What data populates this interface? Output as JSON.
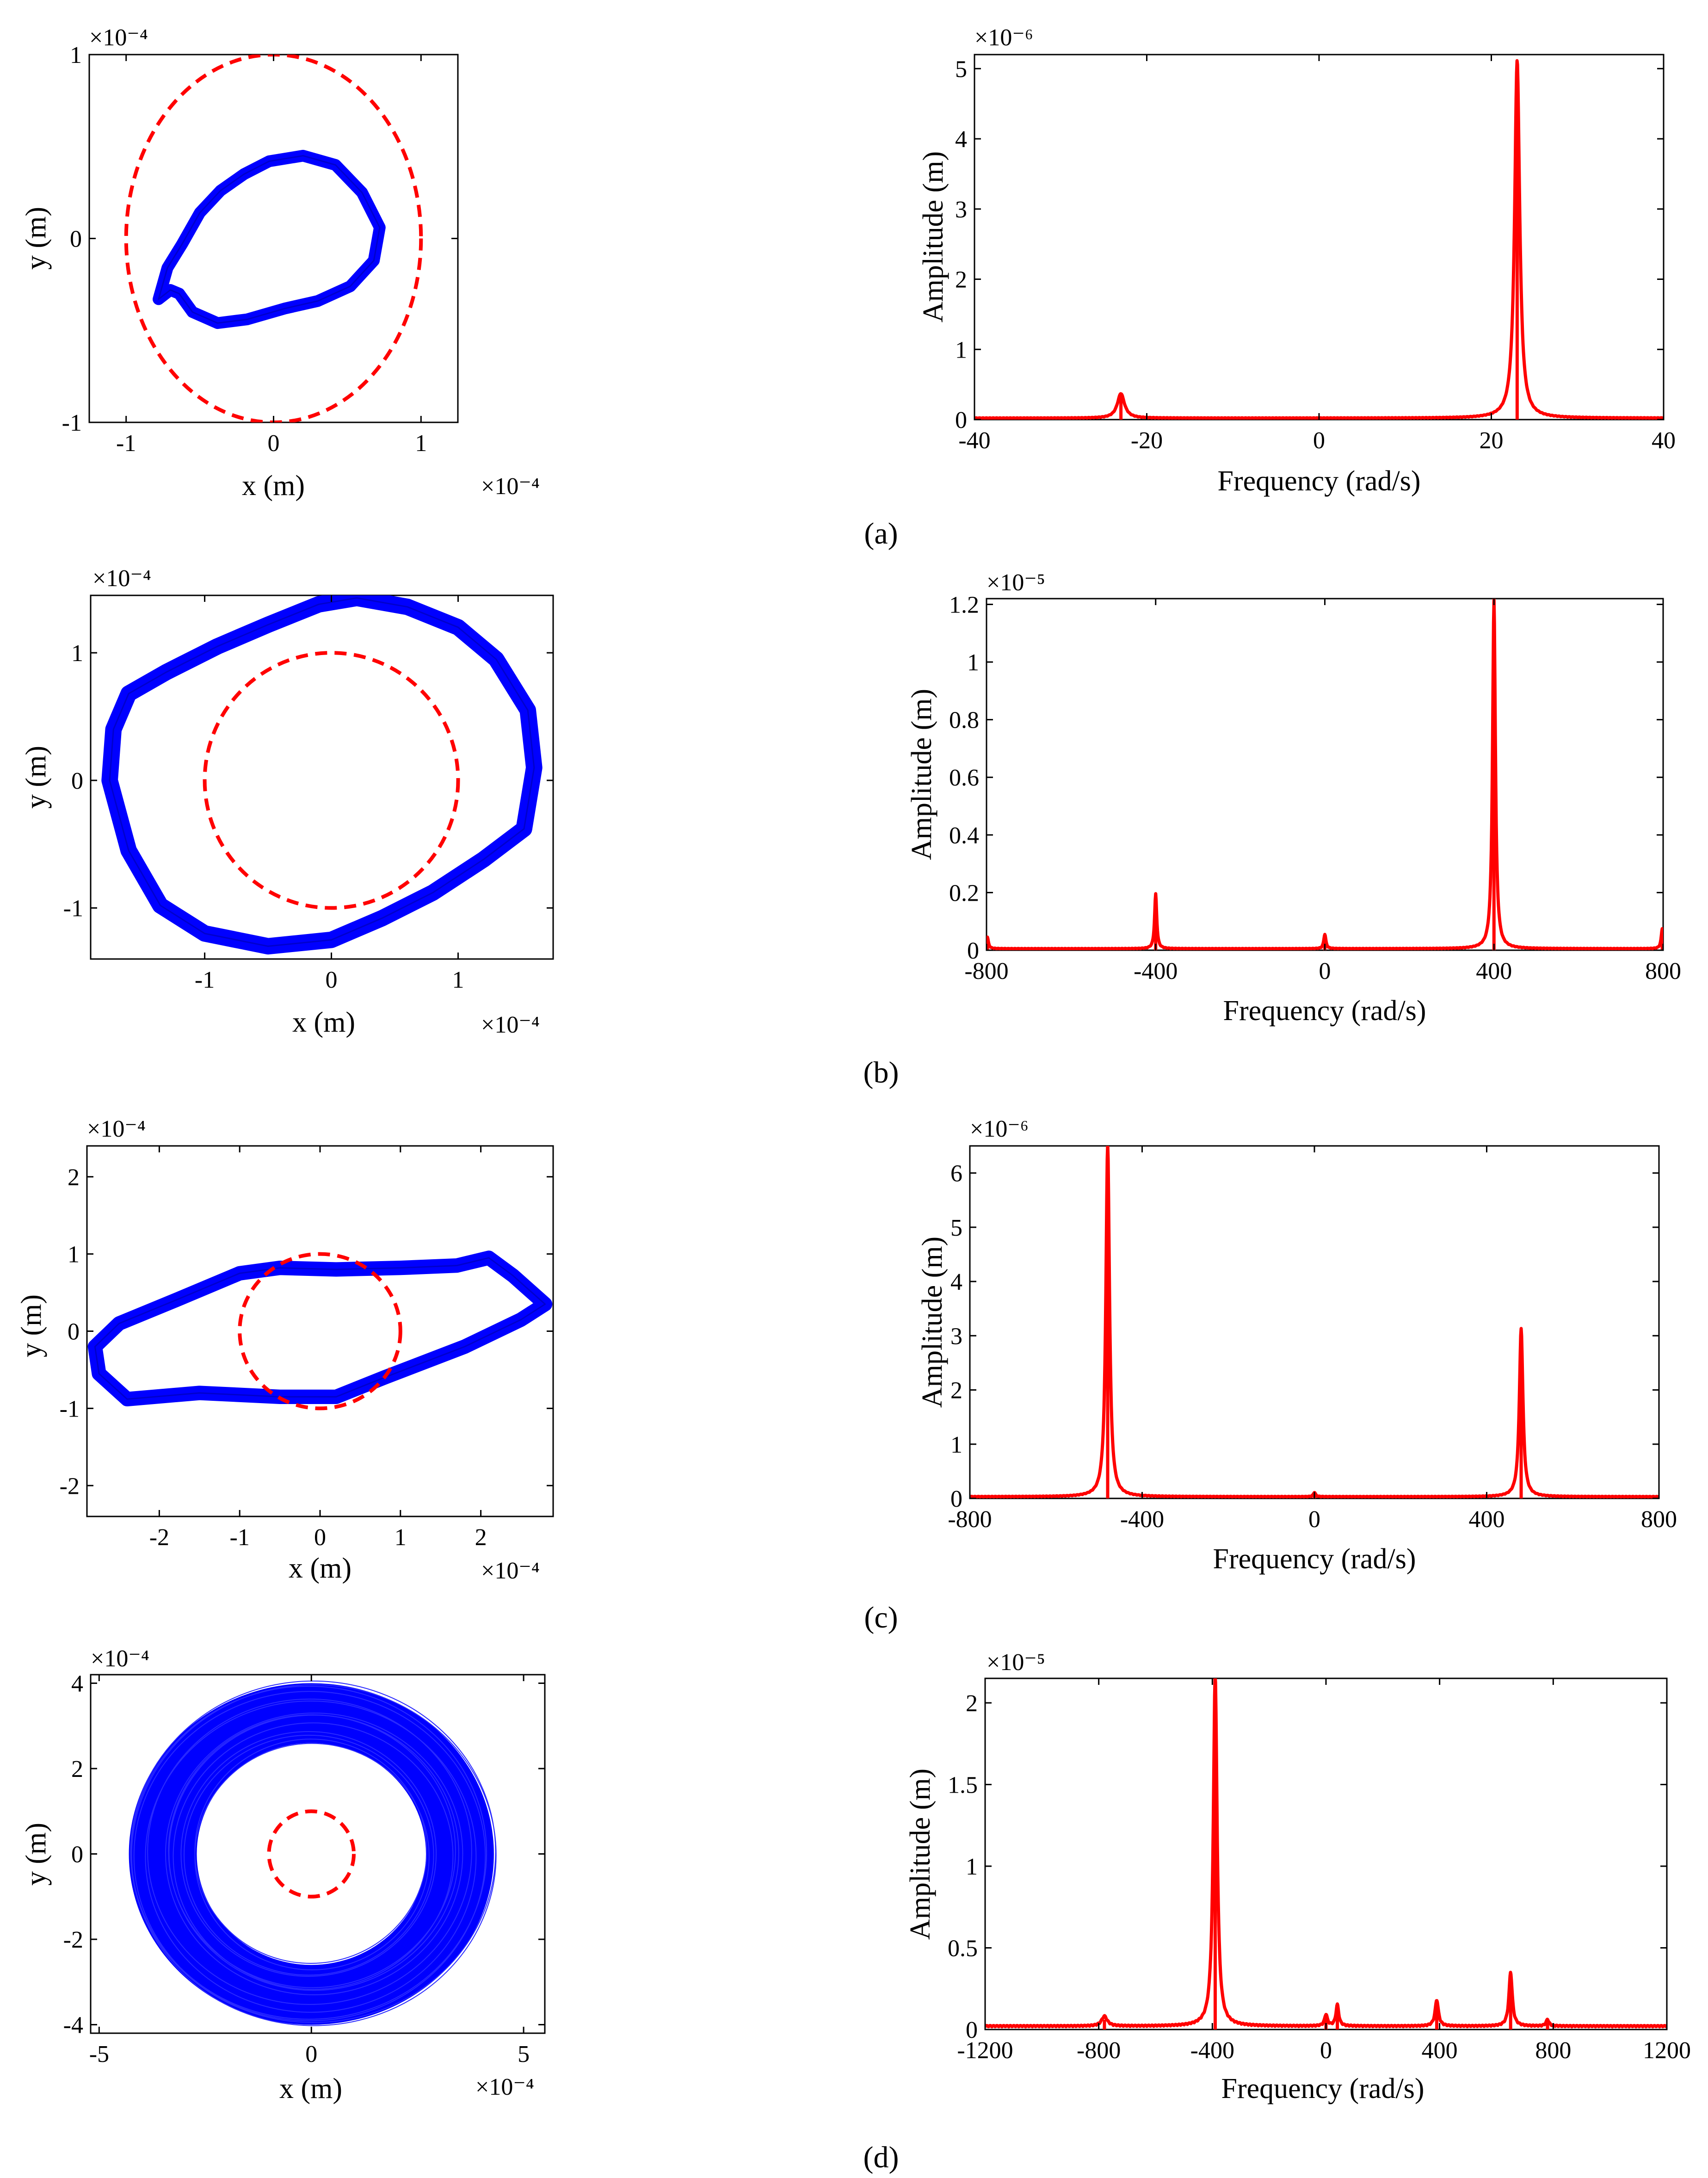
{
  "panel_labels": [
    "(a)",
    "(b)",
    "(c)",
    "(d)"
  ],
  "chart_data": [
    {
      "id": "a-orbit",
      "type": "scatter",
      "xlabel": "x (m)",
      "ylabel": "y (m)",
      "xlim": [
        -1.25,
        1.25
      ],
      "ylim": [
        -1,
        1
      ],
      "xticks": [
        -1,
        0,
        1
      ],
      "xtick_labels": [
        "-1",
        "0",
        "1"
      ],
      "yticks": [
        -1,
        0,
        1
      ],
      "ytick_labels": [
        "-1",
        "0",
        "1"
      ],
      "x_exponent": "×10⁻⁴",
      "y_exponent": "×10⁻⁴",
      "orbit": {
        "color": "#0000ff",
        "band_thickness": 0.08,
        "points": [
          [
            -0.78,
            -0.33
          ],
          [
            -0.72,
            -0.16
          ],
          [
            -0.62,
            -0.03
          ],
          [
            -0.5,
            0.14
          ],
          [
            -0.36,
            0.26
          ],
          [
            -0.2,
            0.35
          ],
          [
            -0.03,
            0.42
          ],
          [
            0.2,
            0.45
          ],
          [
            0.42,
            0.4
          ],
          [
            0.6,
            0.25
          ],
          [
            0.72,
            0.06
          ],
          [
            0.68,
            -0.12
          ],
          [
            0.52,
            -0.26
          ],
          [
            0.3,
            -0.34
          ],
          [
            0.08,
            -0.38
          ],
          [
            -0.18,
            -0.44
          ],
          [
            -0.38,
            -0.46
          ],
          [
            -0.55,
            -0.4
          ],
          [
            -0.64,
            -0.3
          ],
          [
            -0.7,
            -0.28
          ]
        ]
      },
      "reference_circle": {
        "color": "#ff0000",
        "cx": 0,
        "cy": 0,
        "r": 1
      }
    },
    {
      "id": "a-spectrum",
      "type": "line",
      "xlabel": "Frequency (rad/s)",
      "ylabel": "Amplitude (m)",
      "xlim": [
        -40,
        40
      ],
      "ylim": [
        0,
        5.2
      ],
      "xticks": [
        -40,
        -20,
        0,
        20,
        40
      ],
      "xtick_labels": [
        "-40",
        "-20",
        "0",
        "20",
        "40"
      ],
      "yticks": [
        0,
        1,
        2,
        3,
        4,
        5
      ],
      "ytick_labels": [
        "0",
        "1",
        "2",
        "3",
        "4",
        "5"
      ],
      "y_exponent": "×10⁻⁶",
      "color": "#ff0000",
      "baseline": 0.02,
      "peaks": [
        {
          "x": -23,
          "y": 0.35,
          "w": 0.5
        },
        {
          "x": 23,
          "y": 5.1,
          "w": 0.35
        }
      ]
    },
    {
      "id": "b-orbit",
      "type": "scatter",
      "xlabel": "x (m)",
      "ylabel": "y (m)",
      "xlim": [
        -1.9,
        1.75
      ],
      "ylim": [
        -1.4,
        1.45
      ],
      "xticks": [
        -1,
        0,
        1
      ],
      "xtick_labels": [
        "-1",
        "0",
        "1"
      ],
      "yticks": [
        -1,
        0,
        1
      ],
      "ytick_labels": [
        "-1",
        "0",
        "1"
      ],
      "x_exponent": "×10⁻⁴",
      "y_exponent": "×10⁻⁴",
      "orbit": {
        "color": "#0000ff",
        "band_thickness": 0.13,
        "points": [
          [
            -1.6,
            0.68
          ],
          [
            -1.3,
            0.85
          ],
          [
            -0.9,
            1.05
          ],
          [
            -0.5,
            1.22
          ],
          [
            -0.1,
            1.38
          ],
          [
            0.2,
            1.43
          ],
          [
            0.6,
            1.36
          ],
          [
            1.0,
            1.2
          ],
          [
            1.3,
            0.95
          ],
          [
            1.55,
            0.55
          ],
          [
            1.6,
            0.1
          ],
          [
            1.52,
            -0.38
          ],
          [
            1.2,
            -0.62
          ],
          [
            0.8,
            -0.88
          ],
          [
            0.4,
            -1.08
          ],
          [
            0.0,
            -1.25
          ],
          [
            -0.5,
            -1.3
          ],
          [
            -1.0,
            -1.2
          ],
          [
            -1.35,
            -0.98
          ],
          [
            -1.6,
            -0.55
          ],
          [
            -1.75,
            0.0
          ],
          [
            -1.72,
            0.4
          ]
        ]
      },
      "reference_circle": {
        "color": "#ff0000",
        "cx": 0,
        "cy": 0,
        "r": 1
      }
    },
    {
      "id": "b-spectrum",
      "type": "line",
      "xlabel": "Frequency (rad/s)",
      "ylabel": "Amplitude (m)",
      "xlim": [
        -800,
        800
      ],
      "ylim": [
        0,
        1.22
      ],
      "xticks": [
        -800,
        -400,
        0,
        400,
        800
      ],
      "xtick_labels": [
        "-800",
        "-400",
        "0",
        "400",
        "800"
      ],
      "yticks": [
        0,
        0.2,
        0.4,
        0.6,
        0.8,
        1,
        1.2
      ],
      "ytick_labels": [
        "0",
        "0.2",
        "0.4",
        "0.6",
        "0.8",
        "1",
        "1.2"
      ],
      "y_exponent": "×10⁻⁵",
      "color": "#ff0000",
      "baseline": 0.005,
      "peaks": [
        {
          "x": -798,
          "y": 0.04,
          "w": 3
        },
        {
          "x": -400,
          "y": 0.19,
          "w": 3
        },
        {
          "x": 0,
          "y": 0.05,
          "w": 3
        },
        {
          "x": 400,
          "y": 1.21,
          "w": 4
        },
        {
          "x": 798,
          "y": 0.07,
          "w": 3
        }
      ]
    },
    {
      "id": "c-orbit",
      "type": "scatter",
      "xlabel": "x (m)",
      "ylabel": "y (m)",
      "xlim": [
        -2.9,
        2.9
      ],
      "ylim": [
        -2.4,
        2.4
      ],
      "xticks": [
        -2,
        -1,
        0,
        1,
        2
      ],
      "xtick_labels": [
        "-2",
        "-1",
        "0",
        "1",
        "2"
      ],
      "yticks": [
        -2,
        -1,
        0,
        1,
        2
      ],
      "ytick_labels": [
        "-2",
        "-1",
        "0",
        "1",
        "2"
      ],
      "x_exponent": "×10⁻⁴",
      "y_exponent": "×10⁻⁴",
      "orbit": {
        "color": "#0000ff",
        "band_thickness": 0.18,
        "points": [
          [
            -2.8,
            -0.2
          ],
          [
            -2.5,
            0.1
          ],
          [
            -1.8,
            0.4
          ],
          [
            -1.0,
            0.75
          ],
          [
            -0.5,
            0.82
          ],
          [
            0.2,
            0.8
          ],
          [
            1.0,
            0.82
          ],
          [
            1.7,
            0.85
          ],
          [
            2.1,
            0.95
          ],
          [
            2.4,
            0.72
          ],
          [
            2.8,
            0.35
          ],
          [
            2.5,
            0.15
          ],
          [
            1.8,
            -0.2
          ],
          [
            0.8,
            -0.6
          ],
          [
            0.2,
            -0.85
          ],
          [
            -0.5,
            -0.85
          ],
          [
            -1.5,
            -0.8
          ],
          [
            -2.4,
            -0.88
          ],
          [
            -2.75,
            -0.55
          ]
        ]
      },
      "reference_circle": {
        "color": "#ff0000",
        "cx": 0,
        "cy": 0,
        "r": 1
      }
    },
    {
      "id": "c-spectrum",
      "type": "line",
      "xlabel": "Frequency (rad/s)",
      "ylabel": "Amplitude (m)",
      "xlim": [
        -800,
        800
      ],
      "ylim": [
        0,
        6.5
      ],
      "xticks": [
        -800,
        -400,
        0,
        400,
        800
      ],
      "xtick_labels": [
        "-800",
        "-400",
        "0",
        "400",
        "800"
      ],
      "yticks": [
        0,
        1,
        2,
        3,
        4,
        5,
        6
      ],
      "ytick_labels": [
        "0",
        "1",
        "2",
        "3",
        "4",
        "5",
        "6"
      ],
      "y_exponent": "×10⁻⁶",
      "color": "#ff0000",
      "baseline": 0.03,
      "peaks": [
        {
          "x": -480,
          "y": 6.5,
          "w": 5
        },
        {
          "x": 0,
          "y": 0.08,
          "w": 3
        },
        {
          "x": 480,
          "y": 3.1,
          "w": 5
        }
      ]
    },
    {
      "id": "d-orbit",
      "type": "scatter",
      "xlabel": "x (m)",
      "ylabel": "y (m)",
      "xlim": [
        -5.2,
        5.5
      ],
      "ylim": [
        -4.2,
        4.2
      ],
      "xticks": [
        -5,
        0,
        5
      ],
      "xtick_labels": [
        "-5",
        "0",
        "5"
      ],
      "yticks": [
        -4,
        -2,
        0,
        2,
        4
      ],
      "ytick_labels": [
        "-4",
        "-2",
        "0",
        "2",
        "4"
      ],
      "x_exponent": "×10⁻⁴",
      "y_exponent": "×10⁻⁴",
      "orbit": {
        "color": "#0000ff",
        "ring_center": [
          0.0,
          0.0
        ],
        "outer_rx": 4.3,
        "outer_ry": 4.0,
        "inner_rx": 2.7,
        "inner_ry": 2.6
      },
      "reference_circle": {
        "color": "#ff0000",
        "cx": 0,
        "cy": 0,
        "r": 1
      }
    },
    {
      "id": "d-spectrum",
      "type": "line",
      "xlabel": "Frequency (rad/s)",
      "ylabel": "Amplitude (m)",
      "xlim": [
        -1200,
        1200
      ],
      "ylim": [
        0,
        2.15
      ],
      "xticks": [
        -1200,
        -800,
        -400,
        0,
        400,
        800,
        1200
      ],
      "xtick_labels": [
        "-1200",
        "-800",
        "-400",
        "0",
        "400",
        "800",
        "1200"
      ],
      "yticks": [
        0,
        0.5,
        1,
        1.5,
        2
      ],
      "ytick_labels": [
        "0",
        "0.5",
        "1",
        "1.5",
        "2"
      ],
      "y_exponent": "×10⁻⁵",
      "color": "#ff0000",
      "baseline": 0.02,
      "peaks": [
        {
          "x": -780,
          "y": 0.06,
          "w": 12
        },
        {
          "x": -390,
          "y": 2.15,
          "w": 8
        },
        {
          "x": 0,
          "y": 0.07,
          "w": 6
        },
        {
          "x": 40,
          "y": 0.13,
          "w": 6
        },
        {
          "x": 390,
          "y": 0.16,
          "w": 7
        },
        {
          "x": 650,
          "y": 0.33,
          "w": 7
        },
        {
          "x": 780,
          "y": 0.04,
          "w": 6
        }
      ]
    }
  ]
}
